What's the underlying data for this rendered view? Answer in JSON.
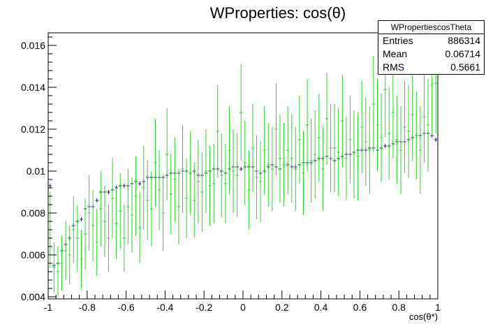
{
  "chart_data": {
    "type": "scatter",
    "title": "WProperties: cos(θ)",
    "xlabel": "cos(θ*)",
    "ylabel": "",
    "xlim": [
      -1,
      1
    ],
    "ylim": [
      0.0039,
      0.0166
    ],
    "grid": false,
    "x_ticks": [
      {
        "value": -1,
        "label": "-1"
      },
      {
        "value": -0.8,
        "label": "-0.8"
      },
      {
        "value": -0.6,
        "label": "-0.6"
      },
      {
        "value": -0.4,
        "label": "-0.4"
      },
      {
        "value": -0.2,
        "label": "-0.2"
      },
      {
        "value": 0,
        "label": "0"
      },
      {
        "value": 0.2,
        "label": "0.2"
      },
      {
        "value": 0.4,
        "label": "0.4"
      },
      {
        "value": 0.6,
        "label": "0.6"
      },
      {
        "value": 0.8,
        "label": "0.8"
      },
      {
        "value": 1,
        "label": "1"
      }
    ],
    "y_ticks": [
      {
        "value": 0.004,
        "label": "0.004"
      },
      {
        "value": 0.006,
        "label": "0.006"
      },
      {
        "value": 0.008,
        "label": "0.008"
      },
      {
        "value": 0.01,
        "label": "0.01"
      },
      {
        "value": 0.012,
        "label": "0.012"
      },
      {
        "value": 0.014,
        "label": "0.014"
      },
      {
        "value": 0.016,
        "label": "0.016"
      }
    ],
    "bins": 100,
    "series": [
      {
        "color": "#1a1a7a",
        "y": [
          0.0093,
          0.0055,
          0.0056,
          0.0062,
          0.0065,
          0.0068,
          0.0074,
          0.0076,
          0.0077,
          0.0082,
          0.0083,
          0.0083,
          0.0086,
          0.009,
          0.009,
          0.009,
          0.0091,
          0.0092,
          0.0093,
          0.0093,
          0.0093,
          0.0094,
          0.0095,
          0.0094,
          0.0095,
          0.0097,
          0.0097,
          0.0097,
          0.0097,
          0.0097,
          0.0098,
          0.0099,
          0.0099,
          0.0099,
          0.01,
          0.01,
          0.0099,
          0.01,
          0.0098,
          0.0098,
          0.0099,
          0.01,
          0.0101,
          0.0101,
          0.01,
          0.0099,
          0.0101,
          0.0102,
          0.0102,
          0.0101,
          0.0102,
          0.0102,
          0.0102,
          0.01,
          0.0099,
          0.01,
          0.0102,
          0.0103,
          0.0102,
          0.0101,
          0.0103,
          0.0103,
          0.0102,
          0.0102,
          0.0103,
          0.0104,
          0.0104,
          0.0104,
          0.0105,
          0.0106,
          0.0106,
          0.0107,
          0.0106,
          0.0105,
          0.0106,
          0.0107,
          0.0108,
          0.0108,
          0.0109,
          0.011,
          0.011,
          0.011,
          0.0111,
          0.0111,
          0.011,
          0.0111,
          0.0112,
          0.0112,
          0.0113,
          0.0114,
          0.0114,
          0.0114,
          0.0115,
          0.0116,
          0.0117,
          0.0117,
          0.0118,
          0.0118,
          0.0117,
          0.0115
        ]
      },
      {
        "color": "#22dd22",
        "y": [
          0.0072,
          0.0054,
          0.0052,
          0.0056,
          0.0062,
          0.006,
          0.0072,
          0.0068,
          0.0058,
          0.007,
          0.008,
          0.0074,
          0.0066,
          0.0082,
          0.0076,
          0.0068,
          0.0087,
          0.0075,
          0.0081,
          0.0068,
          0.0083,
          0.0079,
          0.0088,
          0.0073,
          0.0092,
          0.0086,
          0.0082,
          0.0104,
          0.0091,
          0.008,
          0.0108,
          0.0089,
          0.0096,
          0.0083,
          0.0101,
          0.0087,
          0.0099,
          0.0086,
          0.0095,
          0.009,
          0.01,
          0.0093,
          0.0094,
          0.0119,
          0.0098,
          0.0094,
          0.011,
          0.01,
          0.0098,
          0.0128,
          0.0104,
          0.0091,
          0.0111,
          0.0097,
          0.0095,
          0.011,
          0.0103,
          0.0101,
          0.012,
          0.0106,
          0.0103,
          0.011,
          0.0106,
          0.0101,
          0.0115,
          0.0099,
          0.0122,
          0.0105,
          0.0108,
          0.0116,
          0.0101,
          0.0125,
          0.0111,
          0.0111,
          0.0109,
          0.0124,
          0.0106,
          0.0115,
          0.0108,
          0.0107,
          0.0121,
          0.0114,
          0.011,
          0.0132,
          0.0122,
          0.0116,
          0.0139,
          0.0118,
          0.0128,
          0.0115,
          0.011,
          0.0121,
          0.0119,
          0.0127,
          0.0117,
          0.011,
          0.0126,
          0.0122,
          0.0141,
          0.0142
        ],
        "yerr": [
          0.0018,
          0.0012,
          0.0012,
          0.0013,
          0.0014,
          0.0014,
          0.0016,
          0.0016,
          0.0014,
          0.0017,
          0.0018,
          0.0017,
          0.0016,
          0.0018,
          0.0017,
          0.0016,
          0.0019,
          0.0017,
          0.0018,
          0.0016,
          0.0018,
          0.0018,
          0.0019,
          0.0017,
          0.002,
          0.0019,
          0.0018,
          0.0021,
          0.0019,
          0.0018,
          0.0022,
          0.0019,
          0.002,
          0.0018,
          0.0021,
          0.0019,
          0.002,
          0.0018,
          0.002,
          0.0019,
          0.002,
          0.0019,
          0.0019,
          0.0022,
          0.002,
          0.0019,
          0.0021,
          0.002,
          0.002,
          0.0023,
          0.002,
          0.0019,
          0.0021,
          0.002,
          0.0019,
          0.0021,
          0.002,
          0.002,
          0.0022,
          0.0021,
          0.002,
          0.0021,
          0.0021,
          0.002,
          0.0021,
          0.002,
          0.0022,
          0.002,
          0.0021,
          0.0021,
          0.002,
          0.0022,
          0.0021,
          0.0021,
          0.0021,
          0.0022,
          0.002,
          0.0021,
          0.0021,
          0.0021,
          0.0022,
          0.0021,
          0.0021,
          0.0023,
          0.0022,
          0.0021,
          0.0023,
          0.0022,
          0.0022,
          0.0021,
          0.0021,
          0.0022,
          0.0022,
          0.0022,
          0.0021,
          0.0021,
          0.0022,
          0.0022,
          0.0024,
          0.0024
        ]
      }
    ]
  },
  "stats_box": {
    "name": "WPropertiescosTheta",
    "entries_label": "Entries",
    "entries_value": "886314",
    "mean_label": "Mean",
    "mean_value": "0.06714",
    "rms_label": "RMS",
    "rms_value": "0.5661"
  }
}
